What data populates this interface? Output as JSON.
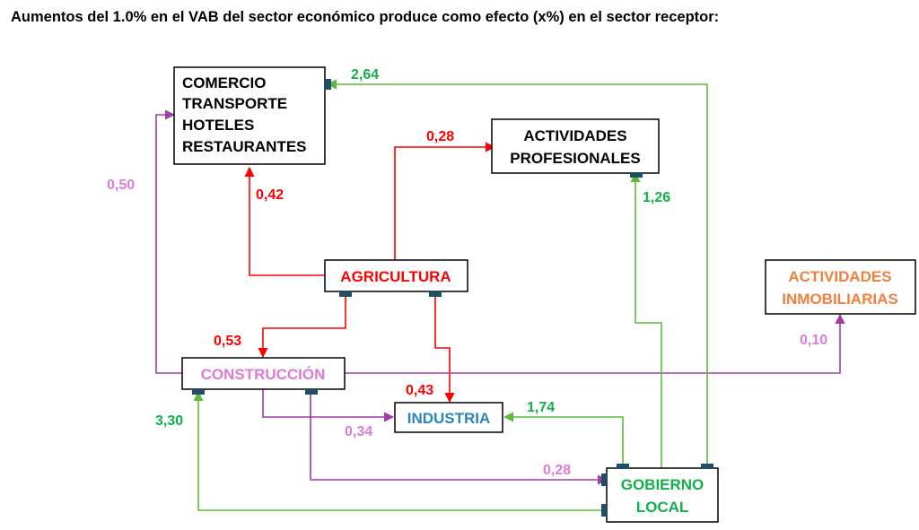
{
  "title": "Aumentos del 1.0% en el VAB del sector económico produce como efecto (x%) en el sector receptor:",
  "colors": {
    "agricultura": "#ff0000",
    "construccion": "#a03ca8",
    "construccion_text": "#e07ad6",
    "gobierno": "#5cba3c",
    "gobierno_text": "#12b04a",
    "industria_text": "#2a86b8",
    "inmobiliarias_text": "#f08040",
    "connector": "#1f4e67"
  },
  "nodes": {
    "comercio": {
      "lines": [
        "COMERCIO",
        "TRANSPORTE",
        "HOTELES",
        "RESTAURANTES"
      ]
    },
    "profesionales": {
      "lines": [
        "ACTIVIDADES",
        "PROFESIONALES"
      ]
    },
    "agricultura": {
      "lines": [
        "AGRICULTURA"
      ]
    },
    "inmobiliarias": {
      "lines": [
        "ACTIVIDADES",
        "INMOBILIARIAS"
      ]
    },
    "construccion": {
      "lines": [
        "CONSTRUCCIÓN"
      ]
    },
    "industria": {
      "lines": [
        "INDUSTRIA"
      ]
    },
    "gobierno": {
      "lines": [
        "GOBIERNO",
        "LOCAL"
      ]
    }
  },
  "edges": {
    "agr_comercio": "0,42",
    "agr_profesionales": "0,28",
    "agr_construccion": "0,53",
    "agr_industria": "0,43",
    "con_comercio": "0,50",
    "con_inmobiliarias": "0,10",
    "con_industria": "0,34",
    "con_gobierno": "0,28",
    "gob_comercio": "2,64",
    "gob_profesionales": "1,26",
    "gob_industria": "1,74",
    "gob_construccion": "3,30"
  }
}
